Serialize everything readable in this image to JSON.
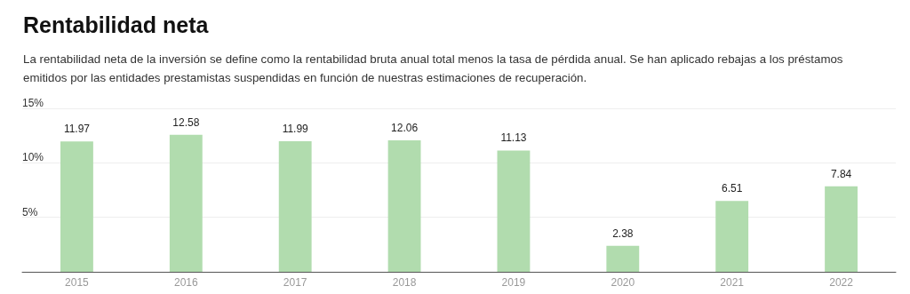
{
  "chart_data": {
    "type": "bar",
    "title": "Rentabilidad neta",
    "subtitle": "La rentabilidad neta de la inversión se define como la rentabilidad bruta anual total menos la tasa de pérdida anual. Se han aplicado rebajas a los préstamos emitidos por las entidades prestamistas suspendidas en función de nuestras estimaciones de recuperación.",
    "categories": [
      "2015",
      "2016",
      "2017",
      "2018",
      "2019",
      "2020",
      "2021",
      "2022"
    ],
    "values": [
      11.97,
      12.58,
      11.99,
      12.06,
      11.13,
      2.38,
      6.51,
      7.84
    ],
    "color": "#b1dcae",
    "ylim": [
      0,
      15
    ],
    "yticks": [
      {
        "value": 0,
        "label": null
      },
      {
        "value": 5,
        "label": "5%"
      },
      {
        "value": 10,
        "label": "10%"
      },
      {
        "value": 15,
        "label": "15%"
      }
    ],
    "grid": "y",
    "data_labels": true
  }
}
